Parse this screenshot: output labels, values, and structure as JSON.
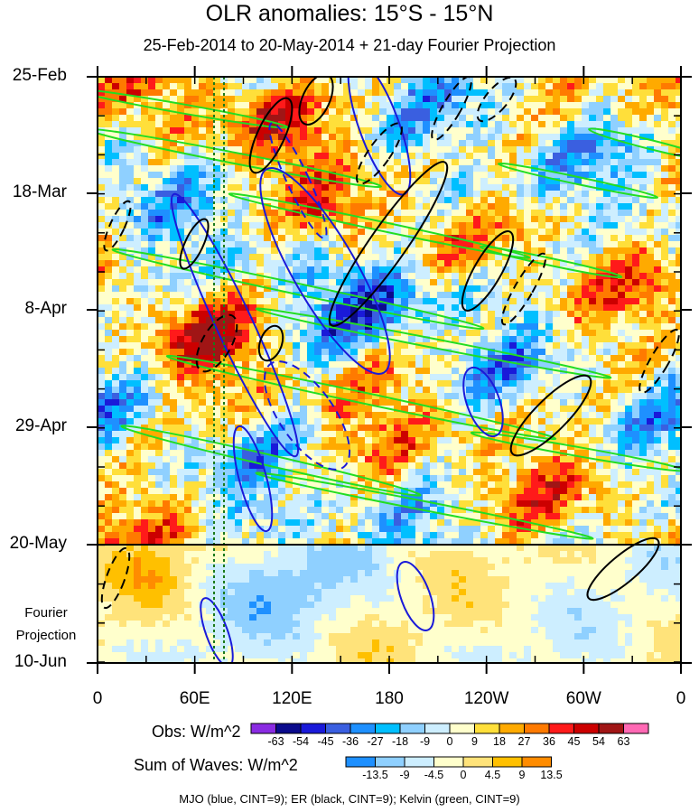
{
  "title": "OLR anomalies: 15°S - 15°N",
  "subtitle": "25-Feb-2014 to 20-May-2014 + 21-day Fourier Projection",
  "chart_data": {
    "type": "heatmap",
    "x_ticks": [
      "0",
      "60E",
      "120E",
      "180",
      "120W",
      "60W",
      "0"
    ],
    "y_ticks": [
      "25-Feb",
      "18-Mar",
      "8-Apr",
      "29-Apr",
      "20-May",
      "10-Jun"
    ],
    "projection_label": [
      "Fourier",
      "Projection"
    ],
    "ylim": [
      "25-Feb",
      "10-Jun"
    ],
    "xlim": [
      0,
      360
    ],
    "divider_date": "20-May",
    "colors": {
      "obs": [
        "#8a2be2",
        "#0b0b8c",
        "#1a1ad9",
        "#3a5fe0",
        "#1e90ff",
        "#00bfff",
        "#8fd0ff",
        "#cdeeff",
        "#ffffcc",
        "#ffdf3a",
        "#ffaa00",
        "#ff7a00",
        "#ff1a1a",
        "#cc0000",
        "#a01515",
        "#ff69b4"
      ],
      "waves": [
        "#1e90ff",
        "#8fd0ff",
        "#cdeeff",
        "#ffffcc",
        "#ffe37a",
        "#ffc000",
        "#ff8c00"
      ]
    },
    "obs_colorbar": {
      "label": "Obs: W/m^2",
      "levels": [
        "-63",
        "-54",
        "-45",
        "-36",
        "-27",
        "-18",
        "-9",
        "0",
        "9",
        "18",
        "27",
        "36",
        "45",
        "54",
        "63"
      ]
    },
    "waves_colorbar": {
      "label": "Sum of Waves: W/m^2",
      "levels": [
        "-13.5",
        "-9",
        "-4.5",
        "0",
        "4.5",
        "9",
        "13.5"
      ]
    },
    "contour_legend": "MJO (blue, CINT=9); ER (black, CINT=9); Kelvin (green, CINT=9)",
    "contour_colors": {
      "mjo": "#1a1ad9",
      "er": "#000000",
      "kelvin": "#22dd22",
      "marker_lines": "#1b7a1b"
    }
  }
}
